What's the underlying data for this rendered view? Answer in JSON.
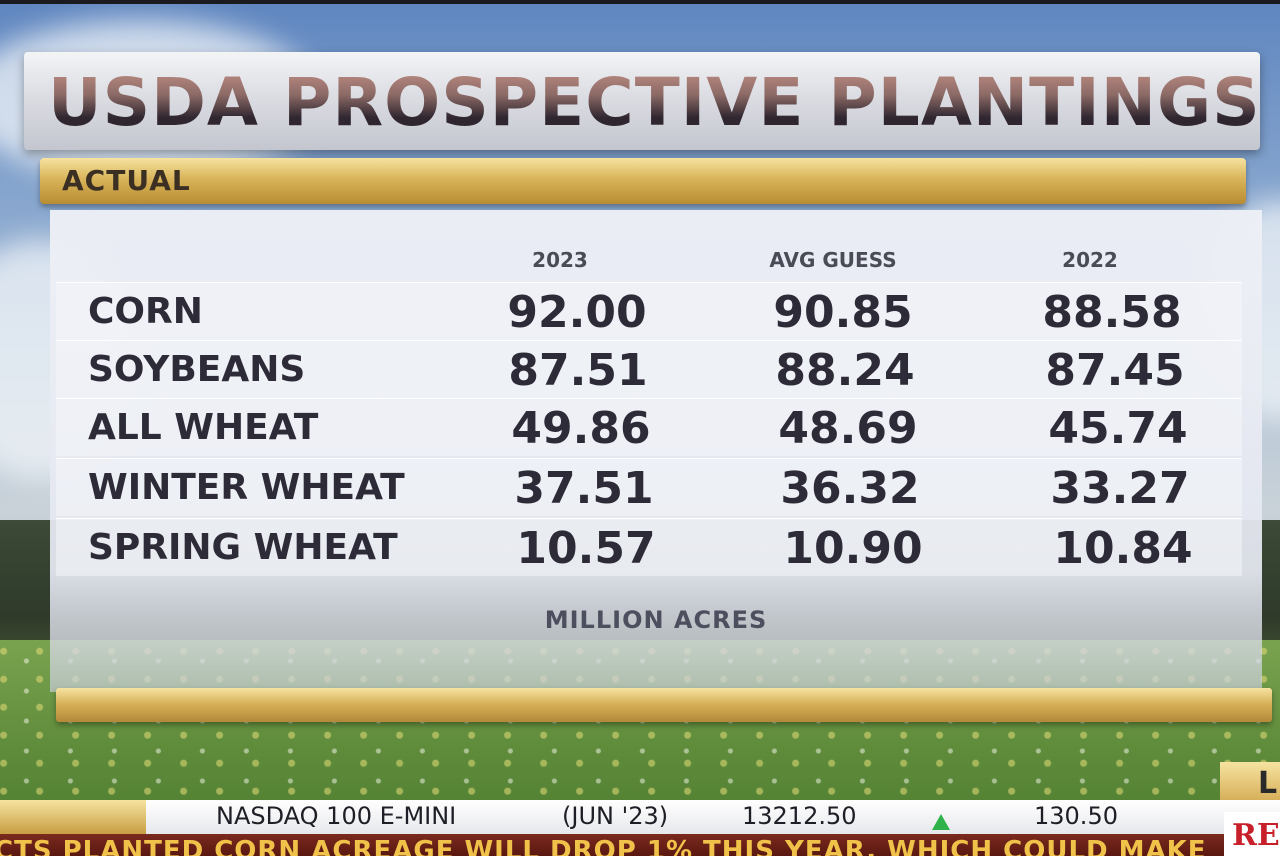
{
  "graphic": {
    "title": "USDA PROSPECTIVE PLANTINGS",
    "section_label": "ACTUAL",
    "columns": [
      "2023",
      "AVG GUESS",
      "2022"
    ],
    "rows": [
      {
        "label": "CORN",
        "values": [
          "92.00",
          "90.85",
          "88.58"
        ]
      },
      {
        "label": "SOYBEANS",
        "values": [
          "87.51",
          "88.24",
          "87.45"
        ]
      },
      {
        "label": "ALL WHEAT",
        "values": [
          "49.86",
          "48.69",
          "45.74"
        ]
      },
      {
        "label": "WINTER WHEAT",
        "values": [
          "37.51",
          "36.32",
          "33.27"
        ]
      },
      {
        "label": "SPRING WHEAT",
        "values": [
          "10.57",
          "10.90",
          "10.84"
        ]
      }
    ],
    "units": "MILLION ACRES"
  },
  "ticker": {
    "symbol": "NASDAQ 100 E-MINI",
    "contract": "(JUN '23)",
    "price": "13212.50",
    "change": "130.50",
    "direction": "up",
    "up_color": "#2fb24a"
  },
  "crawl": {
    "text": "CTS PLANTED CORN ACREAGE WILL DROP 1% THIS YEAR, WHICH COULD MAKE"
  },
  "side_tab": {
    "letter": "L"
  },
  "brand": {
    "text": "RE"
  },
  "colors": {
    "gold": "#d9b45a",
    "panel": "#e9ebf2",
    "text_dark": "#2e2b38",
    "crawl_bg": "#6a2016",
    "crawl_text": "#f0c24a"
  }
}
